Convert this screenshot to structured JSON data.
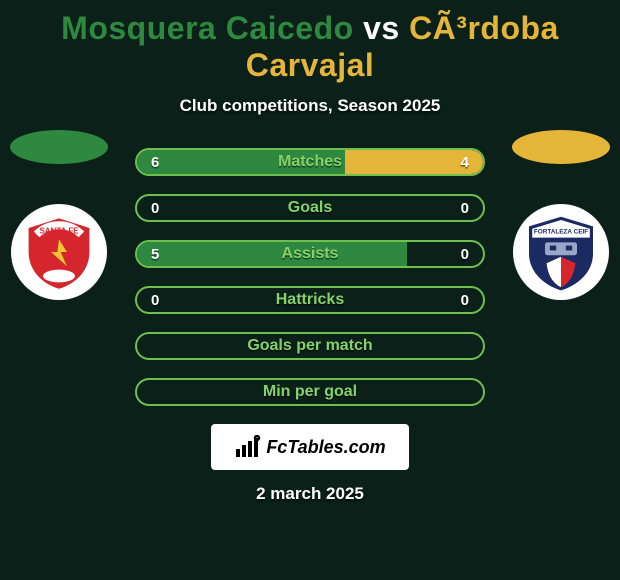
{
  "theme": {
    "background_color": "#0a2018",
    "player1_color": "#2e8840",
    "player2_color": "#e5b53a",
    "border_color": "#6fbf4e",
    "label_color": "#85d26a",
    "text_white": "#ffffff"
  },
  "header": {
    "player1_name": "Mosquera Caicedo",
    "vs": "vs",
    "player2_name": "CÃ³rdoba Carvajal",
    "subtitle": "Club competitions, Season 2025"
  },
  "stats": [
    {
      "label": "Matches",
      "left_value": "6",
      "right_value": "4",
      "left_pct": 60,
      "right_pct": 40,
      "show_values": true
    },
    {
      "label": "Goals",
      "left_value": "0",
      "right_value": "0",
      "left_pct": 0,
      "right_pct": 0,
      "show_values": true
    },
    {
      "label": "Assists",
      "left_value": "5",
      "right_value": "0",
      "left_pct": 78,
      "right_pct": 0,
      "show_values": true
    },
    {
      "label": "Hattricks",
      "left_value": "0",
      "right_value": "0",
      "left_pct": 0,
      "right_pct": 0,
      "show_values": true
    },
    {
      "label": "Goals per match",
      "left_value": "",
      "right_value": "",
      "left_pct": 0,
      "right_pct": 0,
      "show_values": false
    },
    {
      "label": "Min per goal",
      "left_value": "",
      "right_value": "",
      "left_pct": 0,
      "right_pct": 0,
      "show_values": false
    }
  ],
  "brand": {
    "text": "FcTables.com"
  },
  "footer": {
    "date": "2 march 2025"
  },
  "crests": {
    "left": {
      "name": "santa-fe",
      "primary": "#d6262d",
      "text": "SANTA FE"
    },
    "right": {
      "name": "fortaleza",
      "primary": "#1b2a63",
      "accent": "#d6262d"
    }
  }
}
